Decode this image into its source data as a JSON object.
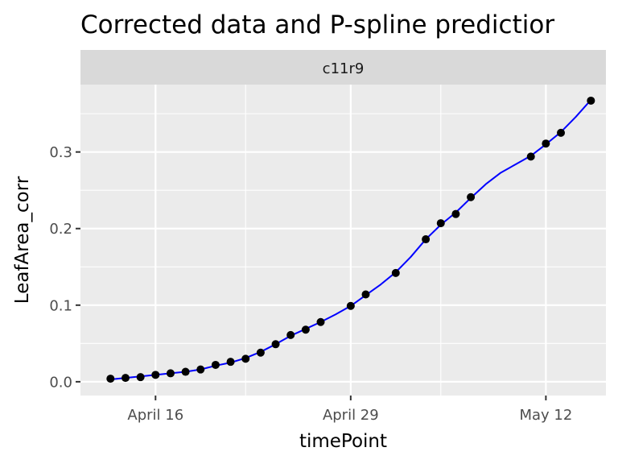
{
  "chart_data": {
    "type": "line",
    "title": "Corrected data and P-spline predictior",
    "facet_label": "c11r9",
    "xlabel": "timePoint",
    "ylabel": "LeafArea_corr",
    "x_axis_type": "date",
    "xlim": [
      "2023-04-11",
      "2023-05-16"
    ],
    "ylim": [
      -0.018,
      0.388
    ],
    "x_ticks": [
      {
        "value": "2023-04-16",
        "label": "April 16"
      },
      {
        "value": "2023-04-29",
        "label": "April 29"
      },
      {
        "value": "2023-05-12",
        "label": "May 12"
      }
    ],
    "x_minor_ticks": [
      "2023-04-22",
      "2023-05-05"
    ],
    "y_ticks": [
      {
        "value": 0.0,
        "label": "0.0"
      },
      {
        "value": 0.1,
        "label": "0.1"
      },
      {
        "value": 0.2,
        "label": "0.2"
      },
      {
        "value": 0.3,
        "label": "0.3"
      }
    ],
    "y_minor_ticks": [
      0.05,
      0.15,
      0.25,
      0.35
    ],
    "grid": true,
    "panel_background": "#ebebeb",
    "strip_background": "#d9d9d9",
    "series": [
      {
        "kind": "points",
        "color": "#000000",
        "points": [
          {
            "x": "2023-04-13",
            "y": 0.004
          },
          {
            "x": "2023-04-14",
            "y": 0.005
          },
          {
            "x": "2023-04-15",
            "y": 0.006
          },
          {
            "x": "2023-04-16",
            "y": 0.009
          },
          {
            "x": "2023-04-17",
            "y": 0.011
          },
          {
            "x": "2023-04-18",
            "y": 0.013
          },
          {
            "x": "2023-04-19",
            "y": 0.016
          },
          {
            "x": "2023-04-20",
            "y": 0.022
          },
          {
            "x": "2023-04-21",
            "y": 0.026
          },
          {
            "x": "2023-04-22",
            "y": 0.03
          },
          {
            "x": "2023-04-23",
            "y": 0.038
          },
          {
            "x": "2023-04-24",
            "y": 0.049
          },
          {
            "x": "2023-04-25",
            "y": 0.061
          },
          {
            "x": "2023-04-26",
            "y": 0.068
          },
          {
            "x": "2023-04-27",
            "y": 0.078
          },
          {
            "x": "2023-04-29",
            "y": 0.099
          },
          {
            "x": "2023-04-30",
            "y": 0.114
          },
          {
            "x": "2023-05-02",
            "y": 0.142
          },
          {
            "x": "2023-05-04",
            "y": 0.186
          },
          {
            "x": "2023-05-05",
            "y": 0.207
          },
          {
            "x": "2023-05-06",
            "y": 0.219
          },
          {
            "x": "2023-05-07",
            "y": 0.241
          },
          {
            "x": "2023-05-11",
            "y": 0.294
          },
          {
            "x": "2023-05-12",
            "y": 0.311
          },
          {
            "x": "2023-05-13",
            "y": 0.325
          },
          {
            "x": "2023-05-15",
            "y": 0.367
          }
        ]
      },
      {
        "kind": "line",
        "color": "#0000ff",
        "points": [
          {
            "x": "2023-04-13",
            "y": 0.003
          },
          {
            "x": "2023-04-14",
            "y": 0.005
          },
          {
            "x": "2023-04-15",
            "y": 0.007
          },
          {
            "x": "2023-04-16",
            "y": 0.009
          },
          {
            "x": "2023-04-17",
            "y": 0.011
          },
          {
            "x": "2023-04-18",
            "y": 0.013
          },
          {
            "x": "2023-04-19",
            "y": 0.016
          },
          {
            "x": "2023-04-20",
            "y": 0.021
          },
          {
            "x": "2023-04-21",
            "y": 0.025
          },
          {
            "x": "2023-04-22",
            "y": 0.031
          },
          {
            "x": "2023-04-23",
            "y": 0.039
          },
          {
            "x": "2023-04-24",
            "y": 0.049
          },
          {
            "x": "2023-04-25",
            "y": 0.06
          },
          {
            "x": "2023-04-26",
            "y": 0.069
          },
          {
            "x": "2023-04-27",
            "y": 0.078
          },
          {
            "x": "2023-04-28",
            "y": 0.088
          },
          {
            "x": "2023-04-29",
            "y": 0.099
          },
          {
            "x": "2023-04-30",
            "y": 0.113
          },
          {
            "x": "2023-05-01",
            "y": 0.127
          },
          {
            "x": "2023-05-02",
            "y": 0.143
          },
          {
            "x": "2023-05-03",
            "y": 0.163
          },
          {
            "x": "2023-05-04",
            "y": 0.186
          },
          {
            "x": "2023-05-05",
            "y": 0.205
          },
          {
            "x": "2023-05-06",
            "y": 0.221
          },
          {
            "x": "2023-05-07",
            "y": 0.24
          },
          {
            "x": "2023-05-08",
            "y": 0.258
          },
          {
            "x": "2023-05-09",
            "y": 0.273
          },
          {
            "x": "2023-05-10",
            "y": 0.284
          },
          {
            "x": "2023-05-11",
            "y": 0.295
          },
          {
            "x": "2023-05-12",
            "y": 0.31
          },
          {
            "x": "2023-05-13",
            "y": 0.326
          },
          {
            "x": "2023-05-14",
            "y": 0.346
          },
          {
            "x": "2023-05-15",
            "y": 0.368
          }
        ]
      }
    ]
  }
}
